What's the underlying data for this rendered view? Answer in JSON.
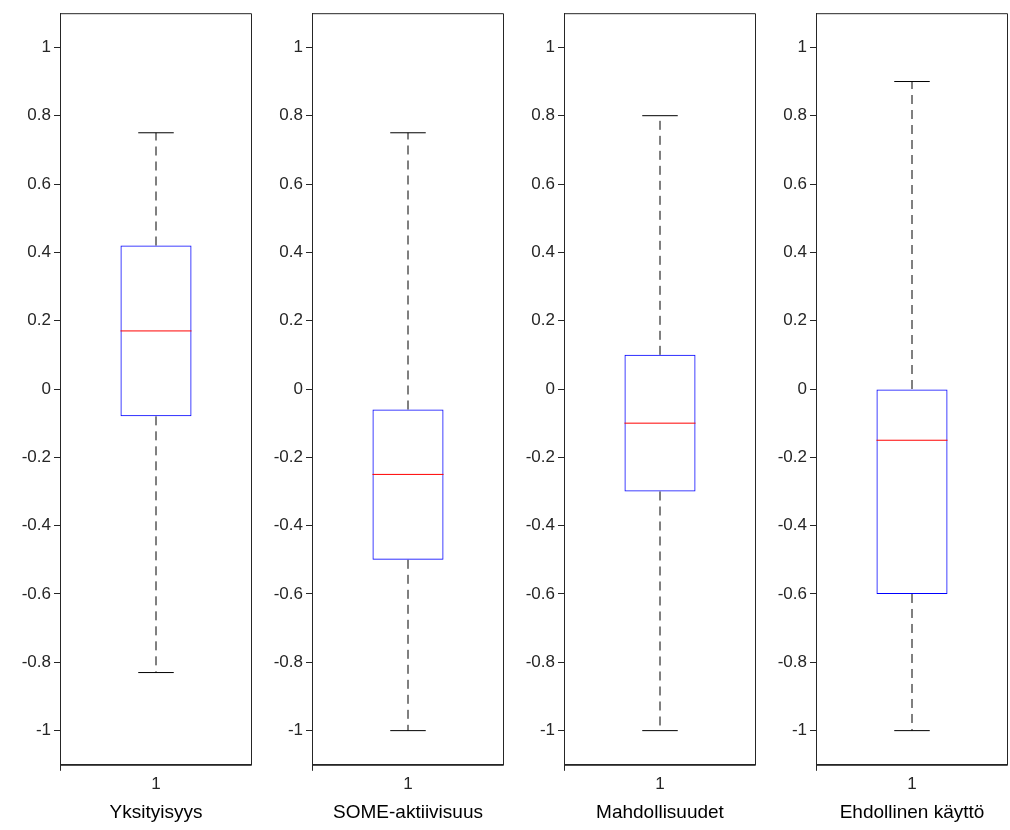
{
  "chart_data": [
    {
      "type": "box",
      "categories": [
        "1"
      ],
      "xlabel": "Yksityisyys",
      "color": "#0000ff",
      "line_style": "dashed",
      "ylim": [
        -1.1,
        1.1
      ],
      "yticks": [
        -1,
        -0.8,
        -0.6,
        -0.4,
        -0.2,
        0,
        0.2,
        0.4,
        0.6,
        0.8,
        1
      ],
      "boxes": [
        {
          "low": -0.83,
          "q1": -0.08,
          "median": 0.17,
          "q3": 0.42,
          "high": 0.75
        }
      ]
    },
    {
      "type": "box",
      "categories": [
        "1"
      ],
      "xlabel": "SOME-aktiivisuus",
      "color": "#0000ff",
      "line_style": "dashed",
      "ylim": [
        -1.1,
        1.1
      ],
      "yticks": [
        -1,
        -0.8,
        -0.6,
        -0.4,
        -0.2,
        0,
        0.2,
        0.4,
        0.6,
        0.8,
        1
      ],
      "boxes": [
        {
          "low": -1,
          "q1": -0.5,
          "median": -0.25,
          "q3": -0.06,
          "high": 0.75
        }
      ]
    },
    {
      "type": "box",
      "categories": [
        "1"
      ],
      "xlabel": "Mahdollisuudet",
      "color": "#0000ff",
      "line_style": "dashed",
      "ylim": [
        -1.1,
        1.1
      ],
      "yticks": [
        -1,
        -0.8,
        -0.6,
        -0.4,
        -0.2,
        0,
        0.2,
        0.4,
        0.6,
        0.8,
        1
      ],
      "boxes": [
        {
          "low": -1,
          "q1": -0.3,
          "median": -0.1,
          "q3": 0.1,
          "high": 0.8
        }
      ]
    },
    {
      "type": "box",
      "categories": [
        "1"
      ],
      "xlabel": "Ehdollinen käyttö",
      "color": "#0000ff",
      "line_style": "dashed",
      "ylim": [
        -1.1,
        1.1
      ],
      "yticks": [
        -1,
        -0.8,
        -0.6,
        -0.4,
        -0.2,
        0,
        0.2,
        0.4,
        0.6,
        0.8,
        1
      ],
      "boxes": [
        {
          "low": -1,
          "q1": -0.6,
          "median": -0.15,
          "q3": 0,
          "high": 0.9
        }
      ]
    }
  ]
}
